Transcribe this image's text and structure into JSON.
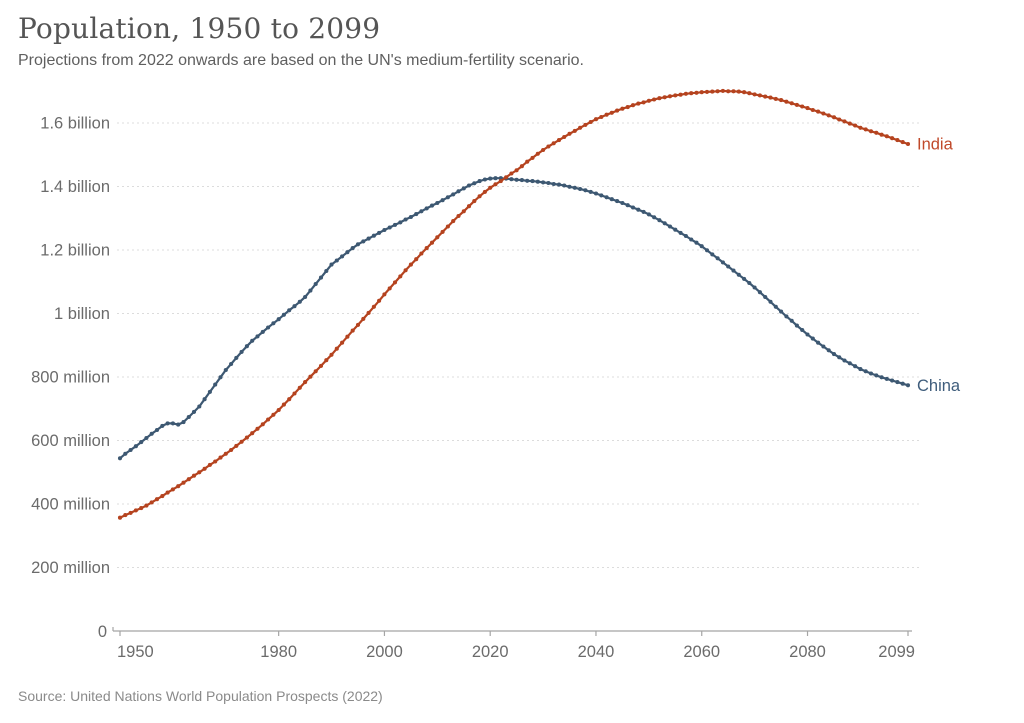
{
  "header": {
    "title": "Population, 1950 to 2099",
    "subtitle": "Projections from 2022 onwards are based on the UN's medium-fertility scenario."
  },
  "footer": {
    "source": "Source: United Nations World Population Prospects (2022)"
  },
  "chart_data": {
    "type": "line",
    "title": "Population, 1950 to 2099",
    "unit": "people (millions)",
    "x_range": [
      1950,
      2099
    ],
    "x_step": 1,
    "grid": "horizontal-dashed",
    "legend_position": "end-of-line-labels",
    "ylim": [
      0,
      1750
    ],
    "y_ticks": [
      {
        "value": 0,
        "label": "0"
      },
      {
        "value": 200,
        "label": "200 million"
      },
      {
        "value": 400,
        "label": "400 million"
      },
      {
        "value": 600,
        "label": "600 million"
      },
      {
        "value": 800,
        "label": "800 million"
      },
      {
        "value": 1000,
        "label": "1 billion"
      },
      {
        "value": 1200,
        "label": "1.2 billion"
      },
      {
        "value": 1400,
        "label": "1.4 billion"
      },
      {
        "value": 1600,
        "label": "1.6 billion"
      }
    ],
    "x_ticks": [
      {
        "value": 1950,
        "label": "1950"
      },
      {
        "value": 1980,
        "label": "1980"
      },
      {
        "value": 2000,
        "label": "2000"
      },
      {
        "value": 2020,
        "label": "2020"
      },
      {
        "value": 2040,
        "label": "2040"
      },
      {
        "value": 2060,
        "label": "2060"
      },
      {
        "value": 2080,
        "label": "2080"
      },
      {
        "value": 2099,
        "label": "2099"
      }
    ],
    "series": [
      {
        "name": "India",
        "color": "#b5431f",
        "label_color": "#c0492a",
        "values": [
          357,
          365,
          372,
          380,
          387,
          395,
          405,
          415,
          425,
          436,
          446,
          456,
          467,
          478,
          489,
          500,
          511,
          523,
          534,
          546,
          558,
          570,
          583,
          596,
          609,
          623,
          637,
          651,
          666,
          681,
          696,
          713,
          730,
          748,
          766,
          784,
          801,
          818,
          835,
          853,
          870,
          889,
          908,
          927,
          946,
          964,
          983,
          1002,
          1021,
          1040,
          1060,
          1079,
          1098,
          1117,
          1136,
          1154,
          1171,
          1189,
          1206,
          1223,
          1240,
          1257,
          1274,
          1291,
          1307,
          1322,
          1338,
          1354,
          1369,
          1383,
          1396,
          1407,
          1417,
          1429,
          1441,
          1451,
          1464,
          1478,
          1490,
          1503,
          1515,
          1526,
          1536,
          1546,
          1556,
          1566,
          1575,
          1585,
          1594,
          1603,
          1612,
          1619,
          1626,
          1632,
          1639,
          1645,
          1650,
          1656,
          1661,
          1665,
          1670,
          1674,
          1678,
          1681,
          1684,
          1687,
          1689,
          1692,
          1694,
          1695,
          1697,
          1698,
          1699,
          1700,
          1701,
          1700,
          1700,
          1699,
          1697,
          1694,
          1690,
          1687,
          1683,
          1680,
          1676,
          1672,
          1667,
          1662,
          1657,
          1652,
          1647,
          1641,
          1636,
          1630,
          1624,
          1618,
          1611,
          1605,
          1598,
          1592,
          1585,
          1580,
          1574,
          1569,
          1563,
          1558,
          1552,
          1546,
          1540,
          1534
        ]
      },
      {
        "name": "China",
        "color": "#3d5872",
        "label_color": "#3f5d7c",
        "values": [
          544,
          558,
          570,
          582,
          595,
          608,
          621,
          633,
          646,
          654,
          654,
          650,
          658,
          674,
          690,
          707,
          730,
          753,
          776,
          799,
          822,
          841,
          860,
          879,
          897,
          914,
          928,
          942,
          956,
          969,
          982,
          996,
          1010,
          1023,
          1037,
          1052,
          1072,
          1093,
          1113,
          1134,
          1154,
          1167,
          1180,
          1193,
          1206,
          1218,
          1227,
          1236,
          1245,
          1254,
          1263,
          1271,
          1279,
          1287,
          1296,
          1304,
          1313,
          1322,
          1331,
          1340,
          1348,
          1357,
          1366,
          1375,
          1385,
          1394,
          1403,
          1410,
          1417,
          1422,
          1425,
          1426,
          1426,
          1425,
          1423,
          1421,
          1420,
          1418,
          1417,
          1415,
          1413,
          1411,
          1408,
          1406,
          1403,
          1399,
          1396,
          1392,
          1388,
          1383,
          1378,
          1372,
          1366,
          1360,
          1354,
          1348,
          1341,
          1334,
          1327,
          1320,
          1312,
          1303,
          1294,
          1284,
          1274,
          1264,
          1254,
          1244,
          1233,
          1223,
          1212,
          1199,
          1186,
          1174,
          1161,
          1148,
          1135,
          1122,
          1109,
          1096,
          1082,
          1067,
          1052,
          1037,
          1021,
          1006,
          991,
          977,
          962,
          948,
          934,
          921,
          908,
          896,
          884,
          872,
          862,
          852,
          843,
          834,
          825,
          818,
          811,
          805,
          799,
          794,
          789,
          784,
          779,
          774
        ]
      }
    ]
  }
}
